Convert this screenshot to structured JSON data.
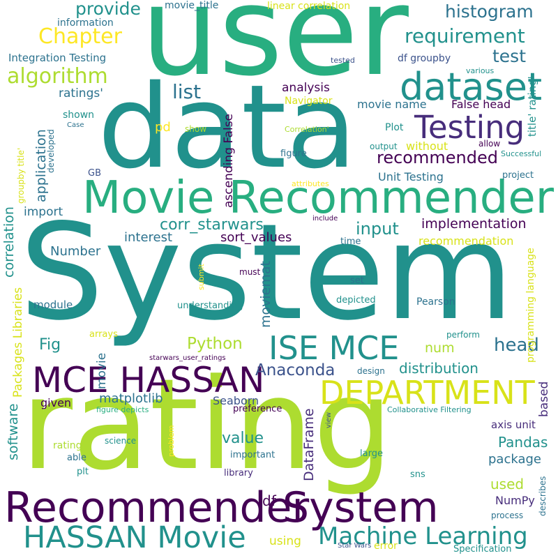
{
  "words": {
    "system_big": "System",
    "user": "user",
    "data": "data",
    "rating": "rating",
    "movie_recommender": "Movie Recommender",
    "dataset": "dataset",
    "testing": "Testing",
    "mce_hassan": "MCE HASSAN",
    "ise_mce": "ISE MCE",
    "department": "DEPARTMENT",
    "recommender": "Recommender",
    "system_small": "System",
    "hassan_movie": "HASSAN Movie",
    "machine_learning": "Machine Learning",
    "chapter": "Chapter",
    "algorithm": "algorithm",
    "requirement": "requirement",
    "histogram": "histogram",
    "provide": "provide",
    "test": "test",
    "list": "list",
    "recommended": "recommended",
    "corr_starwars": "corr_starwars",
    "input": "input",
    "implementation": "implementation",
    "python": "Python",
    "head": "head",
    "anaconda": "Anaconda",
    "distribution": "distribution",
    "pandas": "Pandas",
    "package": "package",
    "value": "value",
    "used": "used",
    "numpy": "NumPy",
    "matplotlib": "matplotlib",
    "seaborn": "Seaborn",
    "dataframe": "DataFrame",
    "moviemat": "moviemat",
    "num": "num",
    "sort_values": "sort_values",
    "interest": "interest",
    "recommendation": "recommendation",
    "number": "Number",
    "fig": "Fig",
    "df": "df",
    "given": "given",
    "movie_title": "movie_title",
    "linear_correlation": "linear correlation",
    "information": "information",
    "integration_testing": "Integration Testing",
    "ratings_q": "ratings'",
    "analysis": "analysis",
    "df_groupby": "df groupby",
    "tested": "tested",
    "various": "various",
    "movie_name": "movie name",
    "false_head": "False head",
    "navigator": "Navigator",
    "shown": "shown",
    "case": "Case",
    "show": "show",
    "correlation_q": "Correlation'",
    "plot": "Plot",
    "output": "output",
    "allow": "allow",
    "without": "without",
    "successful": "Successful",
    "pd": "pd",
    "figure": "figure",
    "unit_testing": "Unit Testing",
    "project": "project",
    "gb": "GB",
    "attributes": "attributes",
    "describes": "describes",
    "import": "import",
    "include": "include",
    "time": "time",
    "must": "must",
    "set": "set",
    "submit": "submit",
    "module": "module",
    "understanding": "understanding",
    "depicted": "depicted",
    "pearson": "Pearson",
    "arrays": "arrays",
    "perform": "perform",
    "starwars_user_ratings": "starwars_user_ratings",
    "design": "design",
    "figure_depicts": "figure depicts",
    "preference": "preference",
    "collaborative_filtering": "Collaborative Filtering",
    "axis_unit": "axis unit",
    "rating_q": "rating'",
    "science": "science",
    "able": "able",
    "important": "important",
    "large": "large",
    "plt": "plt",
    "library": "library",
    "sns": "sns",
    "process": "process",
    "using": "using",
    "error": "error",
    "star_wars": "Star Wars",
    "specification": "Specification",
    "movie": "movie",
    "view": "view",
    "problem": "problem",
    "correlation": "correlation",
    "application": "application",
    "ascending_false": "ascending False",
    "groupby_title_q": "groupby title'",
    "developed": "developed",
    "packages_libraries": "Packages Libraries",
    "software": "software",
    "based": "based",
    "title_rating_q": "title' rating'",
    "programming_language": "programming language"
  }
}
